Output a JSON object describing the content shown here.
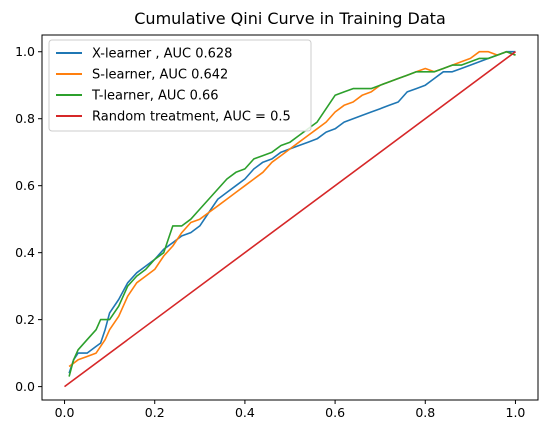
{
  "chart_data": {
    "type": "line",
    "title": "Cumulative Qini Curve in Training Data",
    "xlabel": "",
    "ylabel": "",
    "xlim": [
      -0.05,
      1.05
    ],
    "ylim": [
      -0.04,
      1.05
    ],
    "xticks": [
      0.0,
      0.2,
      0.4,
      0.6,
      0.8,
      1.0
    ],
    "yticks": [
      0.0,
      0.2,
      0.4,
      0.6,
      0.8,
      1.0
    ],
    "x_tick_labels": [
      "0.0",
      "0.2",
      "0.4",
      "0.6",
      "0.8",
      "1.0"
    ],
    "y_tick_labels": [
      "0.0",
      "0.2",
      "0.4",
      "0.6",
      "0.8",
      "1.0"
    ],
    "grid": false,
    "legend_position": "top-left",
    "series": [
      {
        "name": "X-learner , AUC 0.628",
        "color": "#1f77b4",
        "x": [
          0.01,
          0.02,
          0.03,
          0.05,
          0.07,
          0.08,
          0.09,
          0.1,
          0.12,
          0.14,
          0.16,
          0.18,
          0.2,
          0.22,
          0.24,
          0.26,
          0.28,
          0.3,
          0.32,
          0.34,
          0.36,
          0.38,
          0.4,
          0.42,
          0.44,
          0.46,
          0.48,
          0.5,
          0.52,
          0.54,
          0.56,
          0.58,
          0.6,
          0.62,
          0.64,
          0.66,
          0.68,
          0.7,
          0.72,
          0.74,
          0.76,
          0.78,
          0.8,
          0.82,
          0.84,
          0.86,
          0.88,
          0.9,
          0.92,
          0.94,
          0.96,
          0.98,
          1.0
        ],
        "y": [
          0.04,
          0.08,
          0.1,
          0.1,
          0.12,
          0.13,
          0.17,
          0.22,
          0.26,
          0.31,
          0.34,
          0.36,
          0.38,
          0.41,
          0.43,
          0.45,
          0.46,
          0.48,
          0.52,
          0.56,
          0.58,
          0.6,
          0.62,
          0.65,
          0.67,
          0.68,
          0.7,
          0.71,
          0.72,
          0.73,
          0.74,
          0.76,
          0.77,
          0.79,
          0.8,
          0.81,
          0.82,
          0.83,
          0.84,
          0.85,
          0.88,
          0.89,
          0.9,
          0.92,
          0.94,
          0.94,
          0.95,
          0.96,
          0.97,
          0.98,
          0.99,
          1.0,
          1.0
        ]
      },
      {
        "name": "S-learner, AUC 0.642",
        "color": "#ff7f0e",
        "x": [
          0.01,
          0.02,
          0.03,
          0.05,
          0.07,
          0.09,
          0.1,
          0.12,
          0.14,
          0.16,
          0.18,
          0.2,
          0.22,
          0.24,
          0.26,
          0.28,
          0.3,
          0.32,
          0.34,
          0.36,
          0.38,
          0.4,
          0.42,
          0.44,
          0.46,
          0.48,
          0.5,
          0.52,
          0.54,
          0.56,
          0.58,
          0.6,
          0.62,
          0.64,
          0.66,
          0.68,
          0.7,
          0.72,
          0.74,
          0.76,
          0.78,
          0.8,
          0.82,
          0.84,
          0.86,
          0.88,
          0.9,
          0.92,
          0.94,
          0.96,
          0.98,
          1.0
        ],
        "y": [
          0.06,
          0.07,
          0.08,
          0.09,
          0.1,
          0.14,
          0.17,
          0.21,
          0.27,
          0.31,
          0.33,
          0.35,
          0.39,
          0.42,
          0.46,
          0.49,
          0.5,
          0.52,
          0.54,
          0.56,
          0.58,
          0.6,
          0.62,
          0.64,
          0.67,
          0.69,
          0.71,
          0.73,
          0.75,
          0.77,
          0.79,
          0.82,
          0.84,
          0.85,
          0.87,
          0.88,
          0.9,
          0.91,
          0.92,
          0.93,
          0.94,
          0.95,
          0.94,
          0.95,
          0.96,
          0.97,
          0.98,
          1.0,
          1.0,
          0.99,
          1.0,
          0.99
        ]
      },
      {
        "name": "T-learner, AUC 0.66",
        "color": "#2ca02c",
        "x": [
          0.01,
          0.02,
          0.03,
          0.05,
          0.07,
          0.08,
          0.1,
          0.12,
          0.14,
          0.16,
          0.18,
          0.2,
          0.22,
          0.24,
          0.26,
          0.28,
          0.3,
          0.32,
          0.34,
          0.36,
          0.38,
          0.4,
          0.42,
          0.44,
          0.46,
          0.48,
          0.5,
          0.52,
          0.54,
          0.56,
          0.58,
          0.6,
          0.62,
          0.64,
          0.66,
          0.68,
          0.7,
          0.72,
          0.74,
          0.76,
          0.78,
          0.8,
          0.82,
          0.84,
          0.86,
          0.88,
          0.9,
          0.92,
          0.94,
          0.96,
          0.98,
          1.0
        ],
        "y": [
          0.03,
          0.08,
          0.11,
          0.14,
          0.17,
          0.2,
          0.2,
          0.24,
          0.3,
          0.33,
          0.35,
          0.38,
          0.4,
          0.48,
          0.48,
          0.5,
          0.53,
          0.56,
          0.59,
          0.62,
          0.64,
          0.65,
          0.68,
          0.69,
          0.7,
          0.72,
          0.73,
          0.75,
          0.77,
          0.79,
          0.83,
          0.87,
          0.88,
          0.89,
          0.89,
          0.89,
          0.9,
          0.91,
          0.92,
          0.93,
          0.94,
          0.94,
          0.94,
          0.95,
          0.96,
          0.96,
          0.97,
          0.98,
          0.98,
          0.99,
          1.0,
          0.99
        ]
      },
      {
        "name": "Random treatment, AUC = 0.5",
        "color": "#d62728",
        "x": [
          0.0,
          1.0
        ],
        "y": [
          0.0,
          1.0
        ]
      }
    ]
  }
}
